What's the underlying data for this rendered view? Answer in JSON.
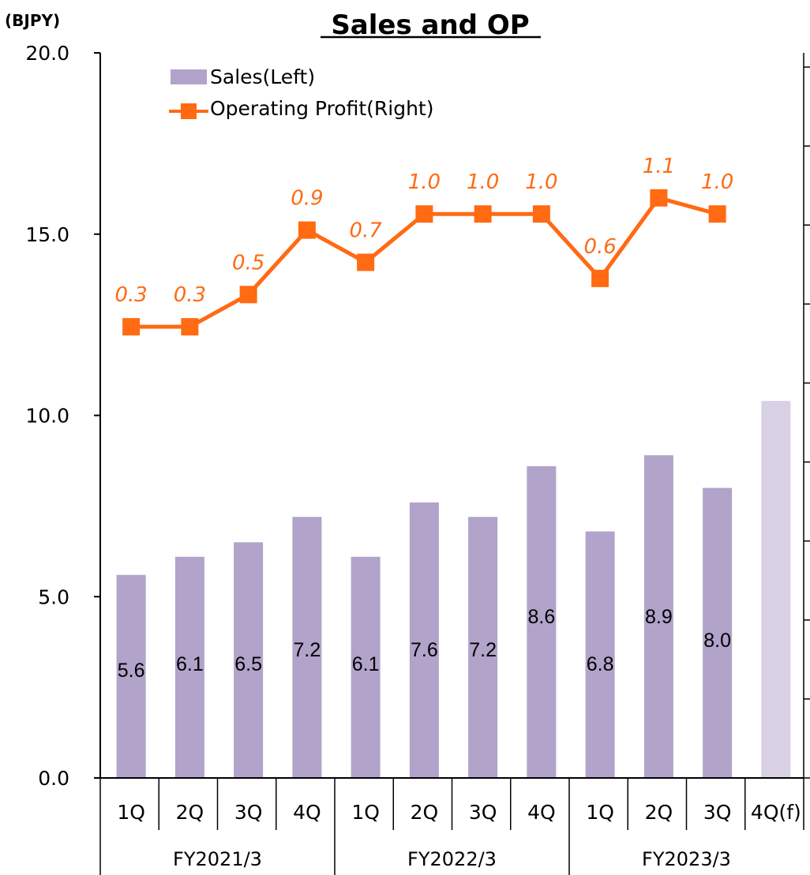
{
  "chart_data": {
    "type": "bar",
    "title": "Sales and OP",
    "unit_label": "(BJPY)",
    "ylim": [
      0,
      20
    ],
    "y_ticks": [
      "20.0",
      "15.0",
      "10.0",
      "5.0",
      "0.0"
    ],
    "categories": [
      "1Q",
      "2Q",
      "3Q",
      "4Q",
      "1Q",
      "2Q",
      "3Q",
      "4Q",
      "1Q",
      "2Q",
      "3Q",
      "4Q(f)"
    ],
    "groups": [
      {
        "label": "FY2021/3",
        "span": 4
      },
      {
        "label": "FY2022/3",
        "span": 4
      },
      {
        "label": "FY2023/3",
        "span": 4
      }
    ],
    "series": [
      {
        "name": "Sales(Left)",
        "kind": "bar",
        "axis": "left",
        "color": "#b1a3c9",
        "forecast_color": "#d8d0e5",
        "values": [
          5.6,
          6.1,
          6.5,
          7.2,
          6.1,
          7.6,
          7.2,
          8.6,
          6.8,
          8.9,
          8.0,
          10.4
        ],
        "labels": [
          "5.6",
          "6.1",
          "6.5",
          "7.2",
          "6.1",
          "7.6",
          "7.2",
          "8.6",
          "6.8",
          "8.9",
          "8.0",
          ""
        ]
      },
      {
        "name": "Operating Profit(Right)",
        "kind": "line",
        "axis": "right",
        "color": "#ff6a13",
        "values": [
          0.3,
          0.3,
          0.5,
          0.9,
          0.7,
          1.0,
          1.0,
          1.0,
          0.6,
          1.1,
          1.0,
          null
        ],
        "labels": [
          "0.3",
          "0.3",
          "0.5",
          "0.9",
          "0.7",
          "1.0",
          "1.0",
          "1.0",
          "0.6",
          "1.1",
          "1.0",
          ""
        ]
      }
    ],
    "legend_position": "top-left",
    "grid": false
  }
}
